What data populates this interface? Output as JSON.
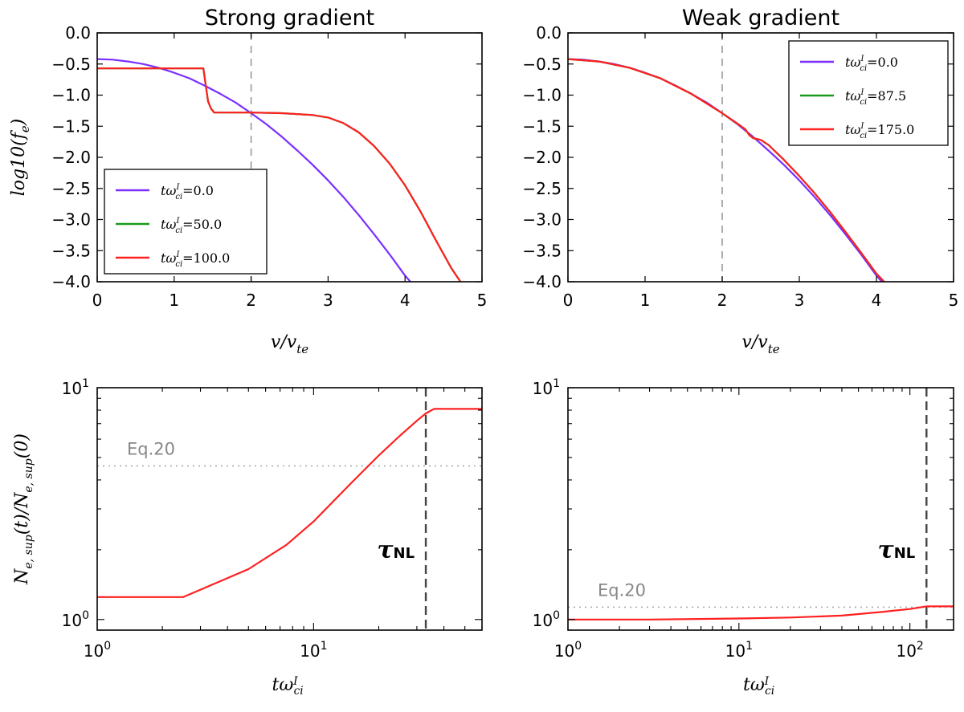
{
  "chart_data": [
    {
      "type": "line",
      "title": "Strong gradient",
      "xlabel": "v/v_te",
      "ylabel": "log10(f_e)",
      "xlim": [
        0,
        5
      ],
      "ylim": [
        -4.0,
        0.0
      ],
      "xticks": [
        "0",
        "1",
        "2",
        "3",
        "4",
        "5"
      ],
      "yticks": [
        "0.0",
        "-0.5",
        "-1.0",
        "-1.5",
        "-2.0",
        "-2.5",
        "-3.0",
        "-3.5",
        "-4.0"
      ],
      "vline_x": 2,
      "legend": {
        "location": "lower-left",
        "entries": [
          "tω_ci^I=0.0",
          "tω_ci^I=50.0",
          "tω_ci^I=100.0"
        ]
      },
      "series": [
        {
          "name": "tω_ci^I=0.0",
          "color": "#7b2fff",
          "x": [
            0,
            0.2,
            0.4,
            0.6,
            0.8,
            1.0,
            1.2,
            1.4,
            1.6,
            1.8,
            2.0,
            2.2,
            2.4,
            2.6,
            2.8,
            3.0,
            3.2,
            3.4,
            3.6,
            3.8,
            4.0,
            4.07
          ],
          "y": [
            -0.42,
            -0.43,
            -0.46,
            -0.5,
            -0.56,
            -0.64,
            -0.73,
            -0.85,
            -0.98,
            -1.12,
            -1.29,
            -1.47,
            -1.67,
            -1.89,
            -2.12,
            -2.37,
            -2.64,
            -2.93,
            -3.24,
            -3.56,
            -3.9,
            -4.0
          ]
        },
        {
          "name": "tω_ci^I=50.0",
          "color": "#1a9a1a",
          "x": [
            0,
            1.38,
            1.4,
            1.44,
            1.48,
            1.52,
            1.6,
            2.0,
            2.4,
            2.8,
            3.0,
            3.2,
            3.4,
            3.6,
            3.8,
            4.0,
            4.2,
            4.4,
            4.6,
            4.72
          ],
          "y": [
            -0.57,
            -0.57,
            -0.75,
            -1.1,
            -1.22,
            -1.28,
            -1.28,
            -1.28,
            -1.29,
            -1.32,
            -1.36,
            -1.45,
            -1.6,
            -1.82,
            -2.1,
            -2.45,
            -2.87,
            -3.33,
            -3.78,
            -4.0
          ]
        },
        {
          "name": "tω_ci^I=100.0",
          "color": "#ff2020",
          "x": [
            0,
            1.38,
            1.4,
            1.44,
            1.48,
            1.52,
            1.6,
            2.0,
            2.4,
            2.8,
            3.0,
            3.2,
            3.4,
            3.6,
            3.8,
            4.0,
            4.2,
            4.4,
            4.6,
            4.72
          ],
          "y": [
            -0.57,
            -0.57,
            -0.75,
            -1.1,
            -1.22,
            -1.28,
            -1.28,
            -1.28,
            -1.29,
            -1.32,
            -1.36,
            -1.45,
            -1.6,
            -1.82,
            -2.1,
            -2.45,
            -2.87,
            -3.33,
            -3.78,
            -4.0
          ]
        }
      ]
    },
    {
      "type": "line",
      "title": "Weak gradient",
      "xlabel": "v/v_te",
      "xlim": [
        0,
        5
      ],
      "ylim": [
        -4.0,
        0.0
      ],
      "xticks": [
        "0",
        "1",
        "2",
        "3",
        "4",
        "5"
      ],
      "yticks": [
        "0.0",
        "-0.5",
        "-1.0",
        "-1.5",
        "-2.0",
        "-2.5",
        "-3.0",
        "-3.5",
        "-4.0"
      ],
      "vline_x": 2,
      "legend": {
        "location": "top-right",
        "entries": [
          "tω_ci^I=0.0",
          "tω_ci^I=87.5",
          "tω_ci^I=175.0"
        ]
      },
      "series": [
        {
          "name": "tω_ci^I=0.0",
          "color": "#7b2fff",
          "x": [
            0,
            0.2,
            0.4,
            0.6,
            0.8,
            1.0,
            1.2,
            1.4,
            1.6,
            1.8,
            2.0,
            2.2,
            2.4,
            2.6,
            2.8,
            3.0,
            3.2,
            3.4,
            3.6,
            3.8,
            4.0,
            4.07
          ],
          "y": [
            -0.42,
            -0.43,
            -0.46,
            -0.5,
            -0.56,
            -0.64,
            -0.73,
            -0.85,
            -0.98,
            -1.12,
            -1.29,
            -1.47,
            -1.67,
            -1.89,
            -2.12,
            -2.37,
            -2.64,
            -2.93,
            -3.24,
            -3.56,
            -3.9,
            -4.0
          ]
        },
        {
          "name": "tω_ci^I=87.5",
          "color": "#1a9a1a",
          "x": [
            0,
            0.4,
            0.8,
            1.2,
            1.6,
            2.0,
            2.2,
            2.3,
            2.35,
            2.4,
            2.5,
            2.6,
            2.8,
            3.0,
            3.2,
            3.4,
            3.6,
            3.8,
            4.0,
            4.1
          ],
          "y": [
            -0.42,
            -0.46,
            -0.56,
            -0.73,
            -0.98,
            -1.29,
            -1.46,
            -1.55,
            -1.64,
            -1.69,
            -1.72,
            -1.8,
            -2.04,
            -2.3,
            -2.58,
            -2.88,
            -3.2,
            -3.53,
            -3.87,
            -4.0
          ]
        },
        {
          "name": "tω_ci^I=175.0",
          "color": "#ff2020",
          "x": [
            0,
            0.4,
            0.8,
            1.2,
            1.6,
            2.0,
            2.2,
            2.3,
            2.35,
            2.4,
            2.5,
            2.6,
            2.8,
            3.0,
            3.2,
            3.4,
            3.6,
            3.8,
            4.0,
            4.1
          ],
          "y": [
            -0.42,
            -0.46,
            -0.56,
            -0.73,
            -0.98,
            -1.29,
            -1.46,
            -1.55,
            -1.64,
            -1.69,
            -1.72,
            -1.8,
            -2.04,
            -2.3,
            -2.58,
            -2.88,
            -3.2,
            -3.53,
            -3.87,
            -4.0
          ]
        }
      ]
    },
    {
      "type": "line",
      "scale": "log-log",
      "title": "",
      "xlabel": "tω_ci^I",
      "ylabel": "N_e,sup(t)/N_e,sup(0)",
      "xlim": [
        1,
        60
      ],
      "ylim": [
        0.9,
        10
      ],
      "xticks": [
        {
          "value": 1,
          "label": "10^0"
        },
        {
          "value": 10,
          "label": "10^1"
        }
      ],
      "yticks": [
        {
          "value": 1,
          "label": "10^0"
        },
        {
          "value": 10,
          "label": "10^1"
        }
      ],
      "hline": {
        "value": 4.6,
        "label": "Eq.20"
      },
      "vline": {
        "value": 33,
        "label": "τNL"
      },
      "series": [
        {
          "name": "N_e,sup ratio",
          "color": "#ff2020",
          "x": [
            1,
            2.5,
            5,
            7.5,
            10,
            15,
            20,
            25,
            30,
            33,
            36,
            60
          ],
          "y": [
            1.25,
            1.25,
            1.65,
            2.1,
            2.65,
            3.9,
            5.1,
            6.2,
            7.2,
            7.75,
            8.1,
            8.1
          ]
        }
      ]
    },
    {
      "type": "line",
      "scale": "log-log",
      "title": "",
      "xlabel": "tω_ci^I",
      "xlim": [
        1,
        180
      ],
      "ylim": [
        0.9,
        10
      ],
      "xticks": [
        {
          "value": 1,
          "label": "10^0"
        },
        {
          "value": 10,
          "label": "10^1"
        },
        {
          "value": 100,
          "label": "10^2"
        }
      ],
      "yticks": [
        {
          "value": 1,
          "label": "10^0"
        },
        {
          "value": 10,
          "label": "10^1"
        }
      ],
      "hline": {
        "value": 1.13,
        "label": "Eq.20"
      },
      "vline": {
        "value": 125,
        "label": "τNL"
      },
      "series": [
        {
          "name": "N_e,sup ratio",
          "color": "#ff2020",
          "x": [
            1,
            3,
            10,
            20,
            40,
            70,
            100,
            125,
            180
          ],
          "y": [
            1.0,
            1.0,
            1.01,
            1.02,
            1.04,
            1.08,
            1.11,
            1.14,
            1.14
          ]
        }
      ]
    }
  ]
}
